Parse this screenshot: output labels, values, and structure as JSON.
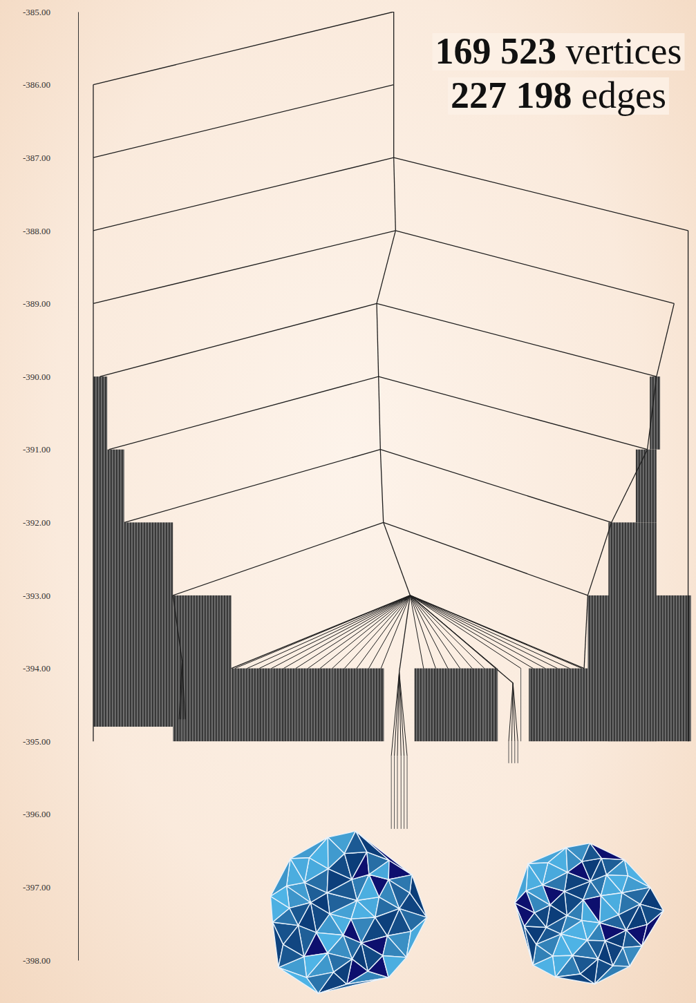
{
  "chart_data": {
    "type": "disconnectivity",
    "annotations": [
      {
        "number": "169 523",
        "text": "vertices"
      },
      {
        "number": "227 198",
        "text": "edges"
      }
    ],
    "ylim": [
      -398,
      -385
    ],
    "yticks": [
      {
        "value": -385,
        "label": "-385.00"
      },
      {
        "value": -386,
        "label": "-386.00"
      },
      {
        "value": -387,
        "label": "-387.00"
      },
      {
        "value": -388,
        "label": "-388.00"
      },
      {
        "value": -389,
        "label": "-389.00"
      },
      {
        "value": -390,
        "label": "-390.00"
      },
      {
        "value": -391,
        "label": "-391.00"
      },
      {
        "value": -392,
        "label": "-392.00"
      },
      {
        "value": -393,
        "label": "-393.00"
      },
      {
        "value": -394,
        "label": "-394.00"
      },
      {
        "value": -395,
        "label": "-395.00"
      },
      {
        "value": -396,
        "label": "-396.00"
      },
      {
        "value": -397,
        "label": "-397.00"
      },
      {
        "value": -398,
        "label": "-398.00"
      }
    ],
    "xlim": [
      0,
      100
    ],
    "tick_labels": "y",
    "grid": false,
    "color": "#1e1e1e",
    "nodes": {
      "x": [
        1.7,
        1.7,
        1.7,
        1.7,
        2.8,
        4.3,
        6.8,
        14.8,
        24.4,
        51.1,
        51.1,
        51.1,
        51.4,
        48.3,
        48.6,
        48.9,
        49.4,
        53.8,
        99.5,
        97.2,
        94.3,
        92.8,
        86.9,
        83.0,
        82.4,
        1.7,
        52.0,
        16.3,
        70.7,
        99.5
      ],
      "y": [
        -386,
        -387,
        -388,
        -389,
        -390,
        -391,
        -392,
        -393,
        -394,
        -385,
        -386,
        -387,
        -388,
        -389,
        -390,
        -391,
        -392,
        -393,
        -388,
        -389,
        -390,
        -391,
        -392,
        -393,
        -394,
        -395,
        -394.05,
        -393.9,
        -394.2,
        -395
      ]
    },
    "edges": [
      [
        0,
        9
      ],
      [
        1,
        10
      ],
      [
        2,
        11
      ],
      [
        3,
        12
      ],
      [
        4,
        13
      ],
      [
        5,
        14
      ],
      [
        6,
        15
      ],
      [
        7,
        16
      ],
      [
        8,
        17
      ],
      [
        0,
        1
      ],
      [
        1,
        2
      ],
      [
        2,
        3
      ],
      [
        3,
        25
      ],
      [
        9,
        10
      ],
      [
        10,
        11
      ],
      [
        11,
        12
      ],
      [
        12,
        13
      ],
      [
        13,
        14
      ],
      [
        14,
        15
      ],
      [
        15,
        16
      ],
      [
        16,
        17
      ],
      [
        11,
        18
      ],
      [
        12,
        19
      ],
      [
        13,
        20
      ],
      [
        14,
        21
      ],
      [
        15,
        22
      ],
      [
        16,
        23
      ],
      [
        17,
        24
      ],
      [
        19,
        20
      ],
      [
        20,
        21
      ],
      [
        21,
        22
      ],
      [
        22,
        23
      ],
      [
        23,
        24
      ],
      [
        18,
        29
      ],
      [
        17,
        26
      ],
      [
        7,
        27
      ],
      [
        17,
        28
      ]
    ],
    "fans": [
      {
        "hub": 17,
        "y": -394,
        "bottom": -395,
        "x": [
          25,
          27,
          29,
          31,
          33,
          35,
          37,
          39,
          41,
          43,
          45,
          47,
          49,
          56,
          58,
          60,
          62,
          64,
          66,
          68,
          72,
          74,
          76,
          78,
          80,
          82
        ]
      },
      {
        "hub": 26,
        "y": -395.2,
        "bottom": -396.2,
        "x": [
          50.7,
          51.2,
          51.7,
          52.3,
          52.8,
          53.3
        ]
      },
      {
        "hub": 27,
        "y": -394.7,
        "bottom": -395,
        "x": [
          15.8,
          16.1,
          16.5,
          16.8
        ]
      },
      {
        "hub": 28,
        "y": -395,
        "bottom": -395.3,
        "x": [
          70.0,
          70.5,
          71.0,
          71.5
        ]
      }
    ],
    "bands": {
      "x0": [
        1.7,
        4.0,
        6.8,
        14.8,
        24.4,
        54.5,
        73.3,
        83.0,
        86.4,
        90.9,
        93.2
      ],
      "x1": [
        4.0,
        6.8,
        14.8,
        24.4,
        49.5,
        68.2,
        83.0,
        100,
        94.3,
        94.3,
        94.9
      ],
      "top": [
        -390,
        -391,
        -392,
        -393,
        -394,
        -394,
        -394,
        -393,
        -392,
        -391,
        -390
      ],
      "bottom": [
        -394.8,
        -394.8,
        -394.8,
        -395,
        -395,
        -395,
        -395,
        -395,
        -395,
        -392,
        -391
      ]
    }
  }
}
